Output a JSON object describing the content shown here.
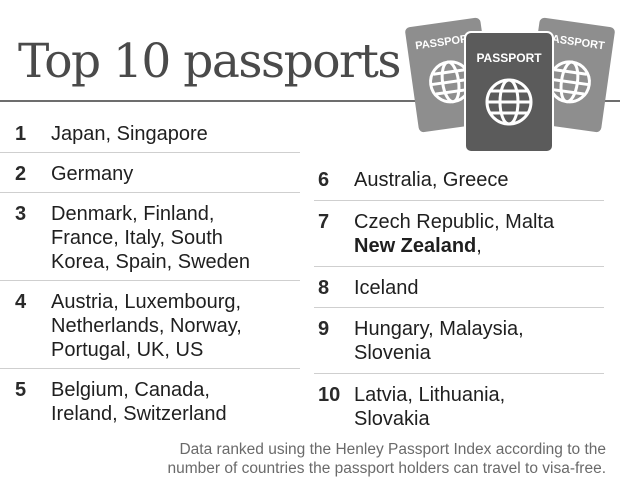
{
  "title": "Top 10 passports",
  "passports": {
    "left_label": "PASSPORT",
    "center_label": "PASSPORT",
    "right_label": "PASSPORT",
    "icon": "globe-icon",
    "colors": {
      "side": "#8e8e8e",
      "center": "#5b5b5b",
      "globe": "#ffffff"
    }
  },
  "rankings": [
    {
      "rank": "1",
      "lines": [
        "Japan, Singapore"
      ]
    },
    {
      "rank": "2",
      "lines": [
        "Germany"
      ]
    },
    {
      "rank": "3",
      "lines": [
        "Denmark, Finland,",
        "France, Italy, South",
        "Korea, Spain, Sweden"
      ]
    },
    {
      "rank": "4",
      "lines": [
        "Austria, Luxembourg,",
        "Netherlands, Norway,",
        "Portugal, UK, US"
      ]
    },
    {
      "rank": "5",
      "lines": [
        "Belgium, Canada,",
        "Ireland, Switzerland"
      ]
    },
    {
      "rank": "6",
      "lines": [
        "Australia, Greece"
      ]
    },
    {
      "rank": "7",
      "lines": [
        "Czech Republic, Malta"
      ],
      "bold_part": "New Zealand",
      "bold_suffix": ","
    },
    {
      "rank": "8",
      "lines": [
        "Iceland"
      ]
    },
    {
      "rank": "9",
      "lines": [
        "Hungary, Malaysia,",
        "Slovenia"
      ]
    },
    {
      "rank": "10",
      "lines": [
        "Latvia, Lithuania,",
        "Slovakia"
      ]
    }
  ],
  "footnote": {
    "line1": "Data ranked using the Henley Passport Index according to the",
    "line2": "number of countries the passport holders can travel to visa-free."
  }
}
